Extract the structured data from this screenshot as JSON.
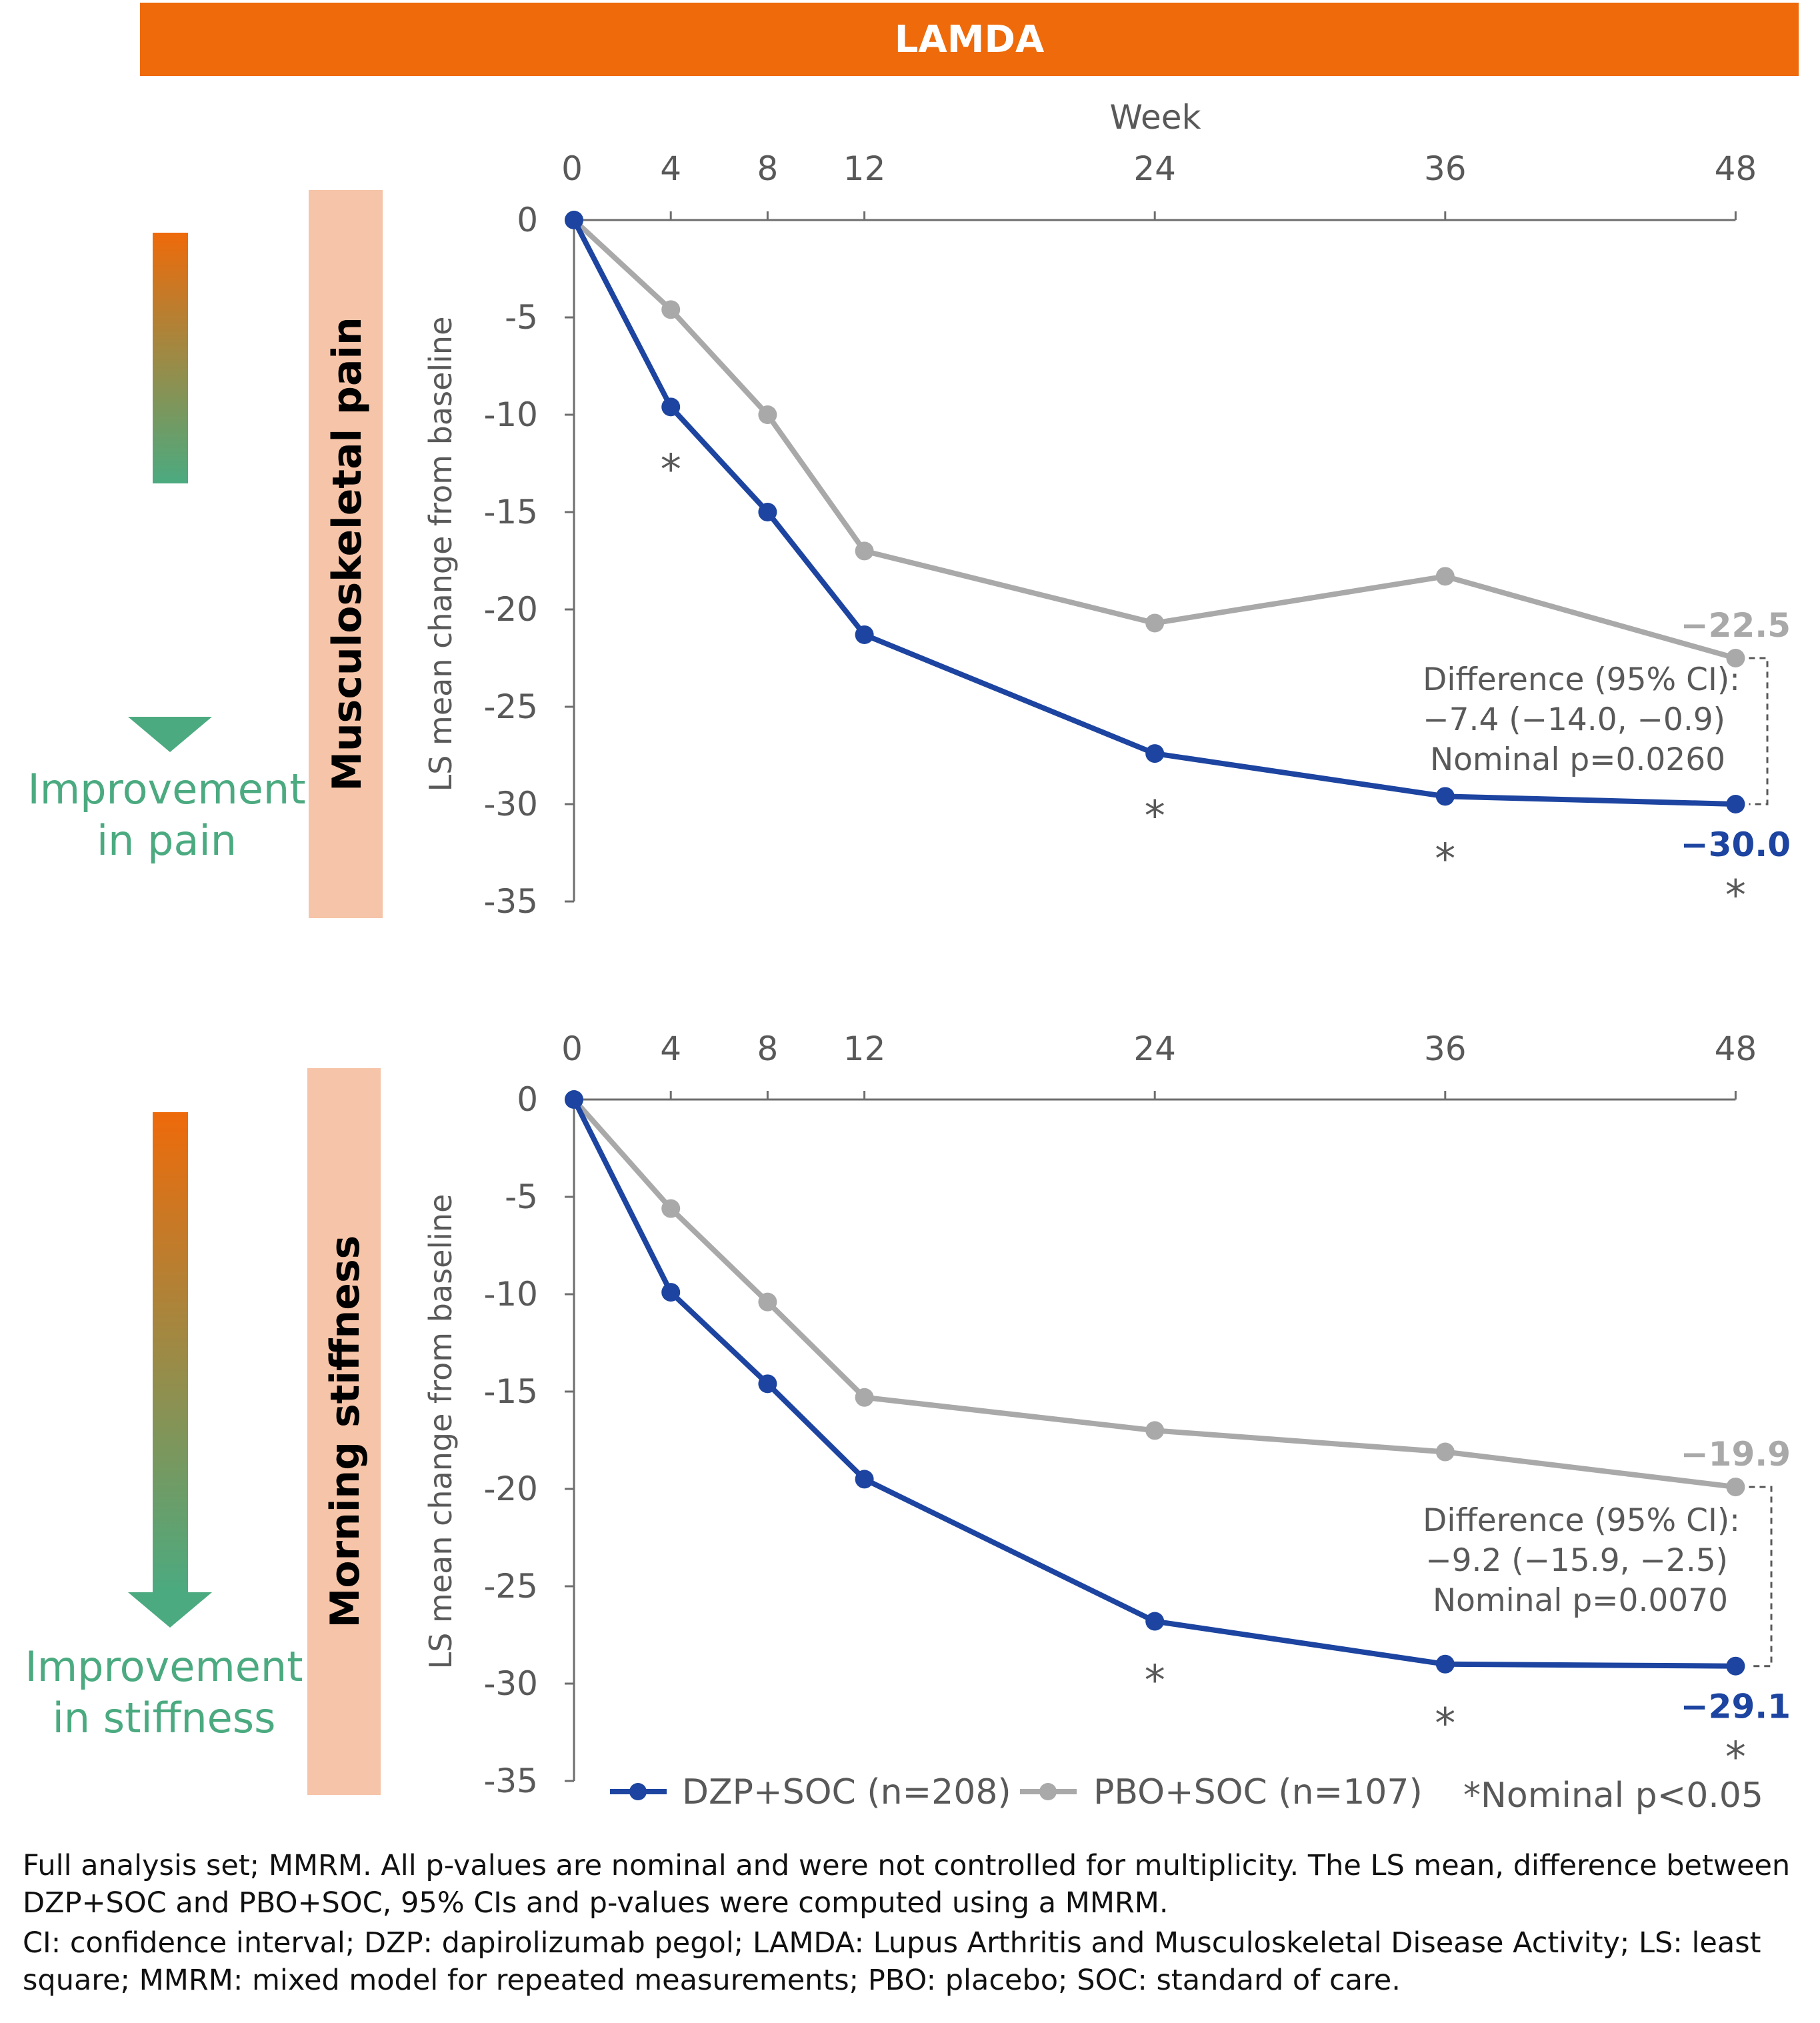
{
  "banner": {
    "title": "LAMDA",
    "color": "#EE6A0A"
  },
  "colors": {
    "dzp": "#1C44A0",
    "pbo": "#A9A9A9",
    "axis": "#6E6E6E",
    "improvement": "#4BAA80",
    "panel_label_bg": "#F6C4A8"
  },
  "legend": {
    "dzp": "DZP+SOC (n=208)",
    "pbo": "PBO+SOC (n=107)",
    "sig": "*Nominal p<0.05"
  },
  "footnotes": {
    "line1": "Full analysis set; MMRM. All p-values are nominal and were not controlled for multiplicity. The LS mean, difference between DZP+SOC and PBO+SOC, 95% CIs and p-values were computed using a MMRM.",
    "line2": "CI: confidence interval; DZP: dapirolizumab pegol; LAMDA: Lupus Arthritis and Musculoskeletal Disease Activity; LS: least square; MMRM: mixed model for repeated measurements; PBO: placebo; SOC: standard of care."
  },
  "chart_data": [
    {
      "type": "line",
      "panel_label": "Musculoskeletal pain",
      "improvement_text": [
        "Improvement",
        "in pain"
      ],
      "xlabel": "Week",
      "ylabel": "LS mean change from baseline",
      "x": [
        0,
        4,
        8,
        12,
        24,
        36,
        48
      ],
      "ylim": [
        -35,
        0
      ],
      "yticks": [
        0,
        -5,
        -10,
        -15,
        -20,
        -25,
        -30,
        -35
      ],
      "series": [
        {
          "name": "DZP+SOC (n=208)",
          "key": "dzp",
          "values": [
            0,
            -9.6,
            -15.0,
            -21.3,
            -27.4,
            -29.6,
            -30.0
          ]
        },
        {
          "name": "PBO+SOC (n=107)",
          "key": "pbo",
          "values": [
            0,
            -4.6,
            -10.0,
            -17.0,
            -20.7,
            -18.3,
            -22.5
          ]
        }
      ],
      "significant_weeks": [
        4,
        24,
        36,
        48
      ],
      "end_labels": {
        "dzp": "−30.0",
        "pbo": "−22.5"
      },
      "difference_text": [
        "Difference (95% CI):",
        "−7.4 (−14.0, −0.9)",
        "Nominal p=0.0260"
      ]
    },
    {
      "type": "line",
      "panel_label": "Morning stiffness",
      "improvement_text": [
        "Improvement",
        "in stiffness"
      ],
      "xlabel": "",
      "ylabel": "LS mean change from baseline",
      "x": [
        0,
        4,
        8,
        12,
        24,
        36,
        48
      ],
      "ylim": [
        -35,
        0
      ],
      "yticks": [
        0,
        -5,
        -10,
        -15,
        -20,
        -25,
        -30,
        -35
      ],
      "series": [
        {
          "name": "DZP+SOC (n=208)",
          "key": "dzp",
          "values": [
            0,
            -9.9,
            -14.6,
            -19.5,
            -26.8,
            -29.0,
            -29.1
          ]
        },
        {
          "name": "PBO+SOC (n=107)",
          "key": "pbo",
          "values": [
            0,
            -5.6,
            -10.4,
            -15.3,
            -17.0,
            -18.1,
            -19.9
          ]
        }
      ],
      "significant_weeks": [
        24,
        36,
        48
      ],
      "end_labels": {
        "dzp": "−29.1",
        "pbo": "−19.9"
      },
      "difference_text": [
        "Difference (95% CI):",
        "−9.2 (−15.9, −2.5)",
        "Nominal p=0.0070"
      ]
    }
  ]
}
